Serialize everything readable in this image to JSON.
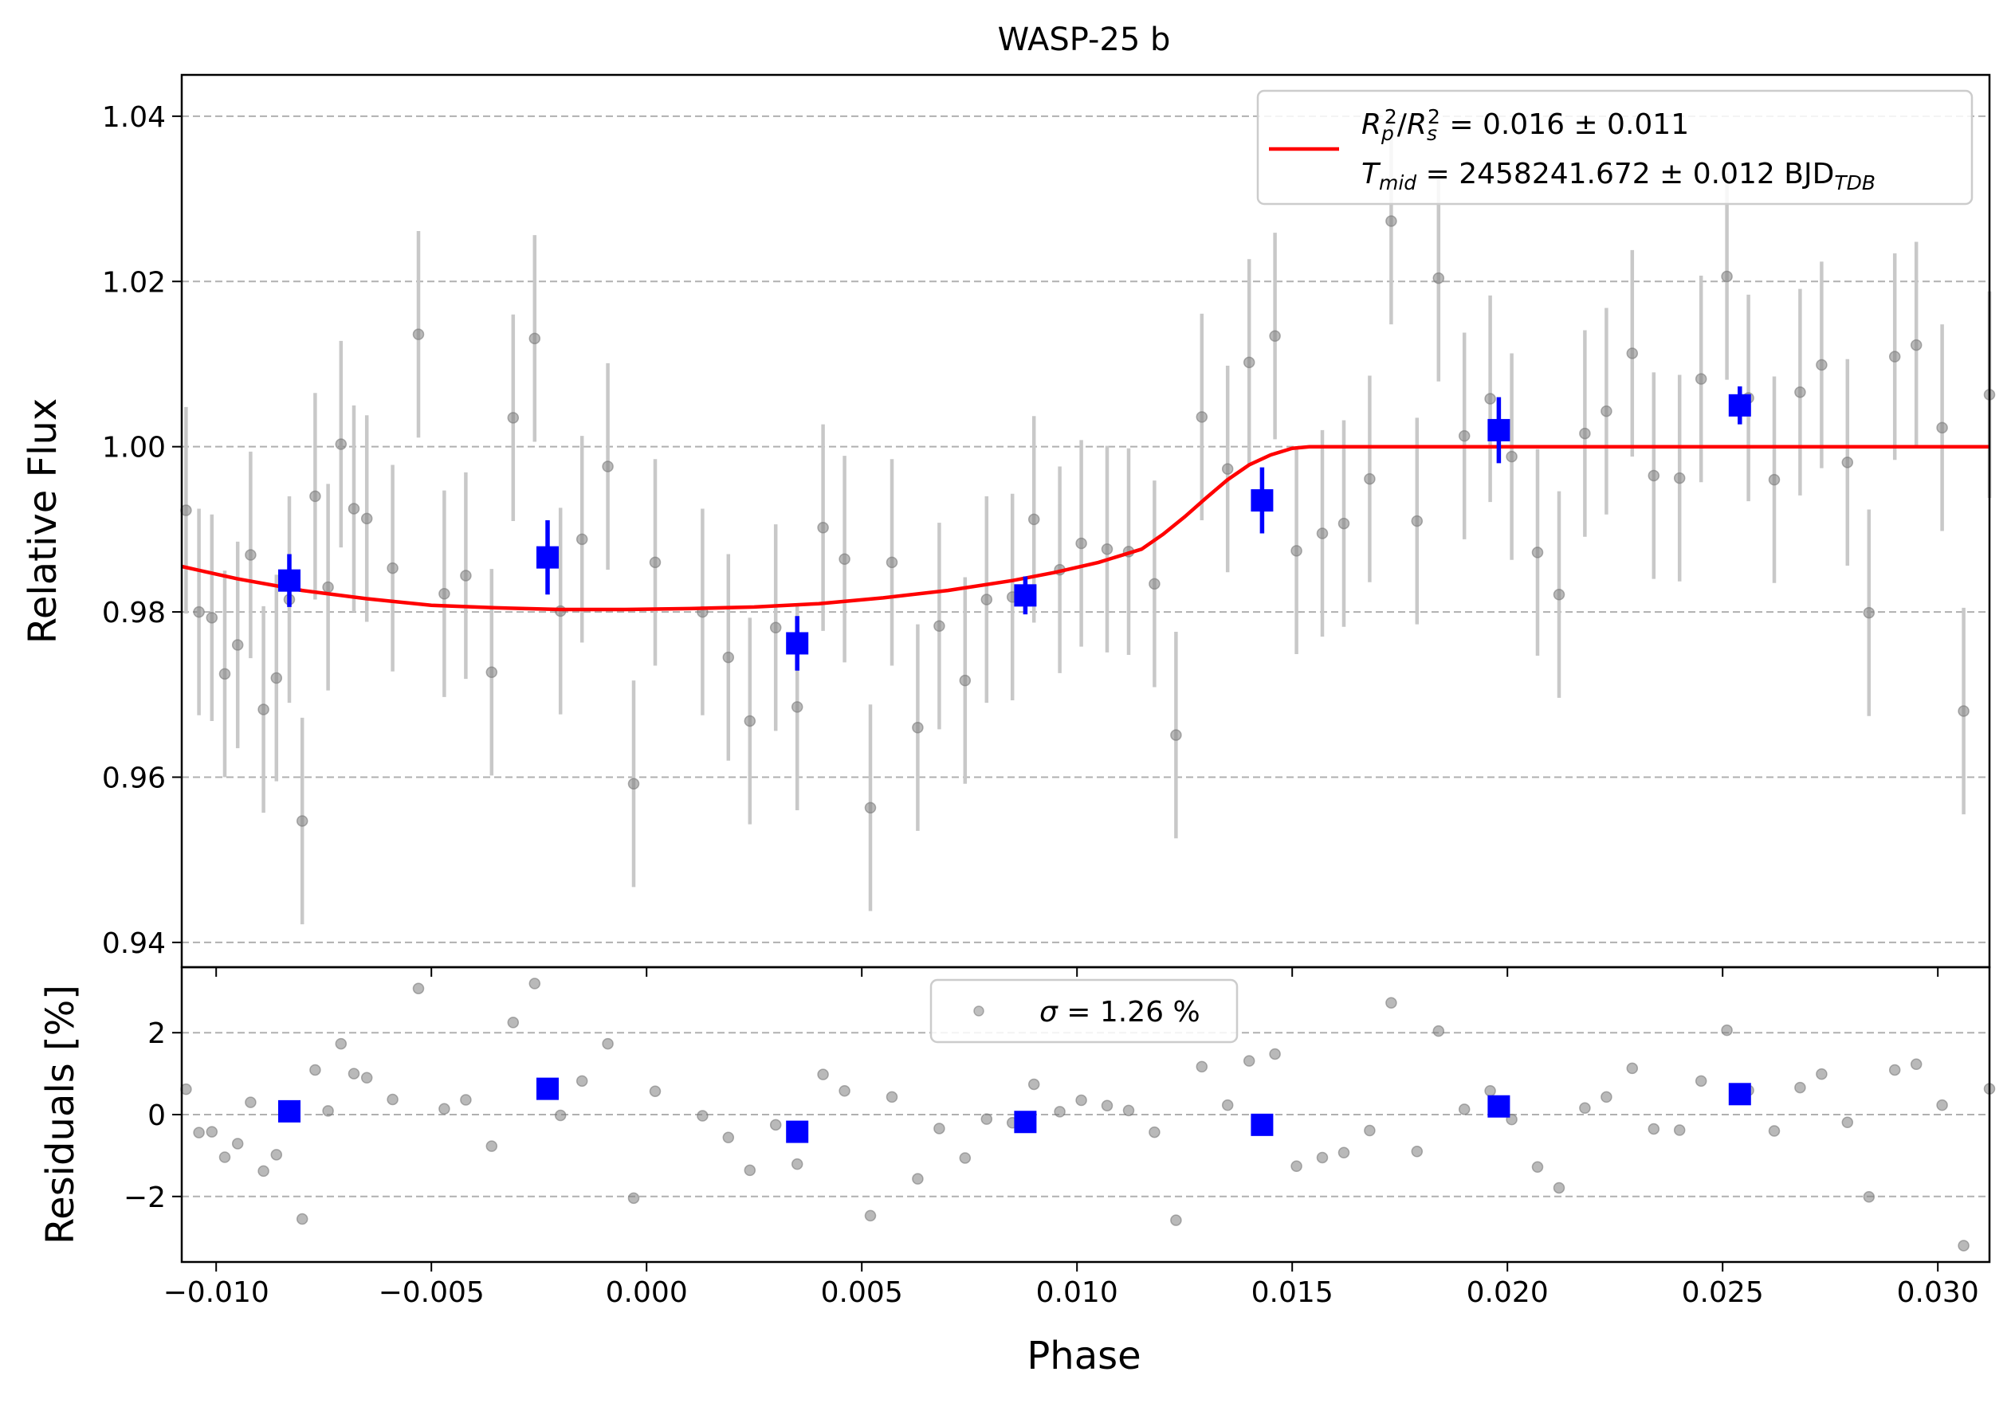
{
  "chart_data": {
    "type": "scatter",
    "title": "WASP-25 b",
    "xlabel": "Phase",
    "xlim": [
      -0.0108,
      0.0312
    ],
    "xticks": [
      {
        "v": -0.01,
        "label": "−0.010"
      },
      {
        "v": -0.005,
        "label": "−0.005"
      },
      {
        "v": 0.0,
        "label": "0.000"
      },
      {
        "v": 0.005,
        "label": "0.005"
      },
      {
        "v": 0.01,
        "label": "0.010"
      },
      {
        "v": 0.015,
        "label": "0.015"
      },
      {
        "v": 0.02,
        "label": "0.020"
      },
      {
        "v": 0.025,
        "label": "0.025"
      },
      {
        "v": 0.03,
        "label": "0.030"
      }
    ],
    "grid": true,
    "top_panel": {
      "ylabel": "Relative Flux",
      "ylim": [
        0.937,
        1.045
      ],
      "yticks": [
        {
          "v": 0.94,
          "label": "0.94"
        },
        {
          "v": 0.96,
          "label": "0.96"
        },
        {
          "v": 0.98,
          "label": "0.98"
        },
        {
          "v": 1.0,
          "label": "1.00"
        },
        {
          "v": 1.02,
          "label": "1.02"
        },
        {
          "v": 1.04,
          "label": "1.04"
        }
      ],
      "legend": {
        "placement": "top-right",
        "line1": {
          "a": "R",
          "a_sub": "p",
          "a_sup": "2",
          "b": "R",
          "b_sub": "s",
          "b_sup": "2",
          "rest": " = 0.016 ± 0.011"
        },
        "line2": {
          "var": "T",
          "var_sub": "mid",
          "rest": " = 2458241.672 ± 0.012 BJD",
          "unit_sub": "TDB"
        }
      },
      "raw_points": {
        "color": "#808080",
        "x": [
          -0.0107,
          -0.0104,
          -0.0101,
          -0.0098,
          -0.0095,
          -0.0092,
          -0.0089,
          -0.0086,
          -0.0083,
          -0.008,
          -0.0077,
          -0.0074,
          -0.0071,
          -0.0068,
          -0.0065,
          -0.0059,
          -0.0053,
          -0.0047,
          -0.0042,
          -0.0036,
          -0.0031,
          -0.0026,
          -0.002,
          -0.0015,
          -0.0009,
          -0.0003,
          0.0002,
          0.0013,
          0.0019,
          0.0024,
          0.003,
          0.0035,
          0.0041,
          0.0046,
          0.0052,
          0.0057,
          0.0063,
          0.0068,
          0.0074,
          0.0079,
          0.0085,
          0.009,
          0.0096,
          0.0101,
          0.0107,
          0.0112,
          0.0118,
          0.0123,
          0.0129,
          0.0135,
          0.014,
          0.0146,
          0.0151,
          0.0157,
          0.0162,
          0.0168,
          0.0173,
          0.0179,
          0.0184,
          0.019,
          0.0196,
          0.0201,
          0.0207,
          0.0212,
          0.0218,
          0.0223,
          0.0229,
          0.0234,
          0.024,
          0.0245,
          0.0251,
          0.0256,
          0.0262,
          0.0268,
          0.0273,
          0.0279,
          0.0284,
          0.029,
          0.0295,
          0.0301,
          0.0306,
          0.0312
        ],
        "y": [
          0.9923,
          0.98,
          0.9793,
          0.9725,
          0.976,
          0.9869,
          0.9682,
          0.972,
          0.9815,
          0.9547,
          0.994,
          0.983,
          1.0003,
          0.9925,
          0.9913,
          0.9853,
          1.0136,
          0.9822,
          0.9844,
          0.9727,
          1.0035,
          1.0131,
          0.9801,
          0.9888,
          0.9976,
          0.9592,
          0.986,
          0.98,
          0.9745,
          0.9668,
          0.9781,
          0.9685,
          0.9902,
          0.9864,
          0.9563,
          0.986,
          0.966,
          0.9783,
          0.9717,
          0.9815,
          0.9818,
          0.9912,
          0.9851,
          0.9883,
          0.9876,
          0.9873,
          0.9834,
          0.9651,
          1.0036,
          0.9973,
          1.0102,
          1.0134,
          0.9874,
          0.9895,
          0.9907,
          0.9961,
          1.0273,
          0.991,
          1.0204,
          1.0013,
          1.0058,
          0.9988,
          0.9872,
          0.9821,
          1.0016,
          1.0043,
          1.0113,
          0.9965,
          0.9962,
          1.0082,
          1.0206,
          1.0059,
          0.996,
          1.0066,
          1.0099,
          0.9981,
          0.9799,
          1.0109,
          1.0123,
          1.0023,
          0.968,
          1.0063
        ],
        "err": 0.0125
      },
      "binned_points": {
        "color": "#0000ff",
        "x": [
          -0.0083,
          -0.0023,
          0.0035,
          0.0088,
          0.0143,
          0.0198,
          0.0254
        ],
        "y": [
          0.9838,
          0.9866,
          0.9762,
          0.982,
          0.9935,
          1.002,
          1.005
        ],
        "err": [
          0.0032,
          0.0045,
          0.0033,
          0.0023,
          0.004,
          0.004,
          0.0023
        ]
      },
      "model": {
        "color": "#ff0000",
        "x": [
          -0.0108,
          -0.0095,
          -0.008,
          -0.0065,
          -0.005,
          -0.0035,
          -0.002,
          -0.0005,
          0.001,
          0.0025,
          0.004,
          0.0055,
          0.007,
          0.0085,
          0.0095,
          0.0105,
          0.0115,
          0.012,
          0.0125,
          0.013,
          0.0135,
          0.014,
          0.0145,
          0.015,
          0.0154,
          0.016,
          0.02,
          0.025,
          0.0312
        ],
        "y": [
          0.9855,
          0.984,
          0.9826,
          0.9816,
          0.9808,
          0.9805,
          0.9803,
          0.9803,
          0.9804,
          0.9806,
          0.981,
          0.9817,
          0.9826,
          0.9838,
          0.9848,
          0.986,
          0.9876,
          0.9894,
          0.9915,
          0.9938,
          0.996,
          0.9978,
          0.999,
          0.9998,
          1.0,
          1.0,
          1.0,
          1.0,
          1.0
        ]
      }
    },
    "bottom_panel": {
      "ylabel": "Residuals [%]",
      "ylim": [
        -3.6,
        3.6
      ],
      "yticks": [
        {
          "v": -2,
          "label": "−2"
        },
        {
          "v": 0,
          "label": "0"
        },
        {
          "v": 2,
          "label": "2"
        }
      ],
      "legend": {
        "placement": "top-center",
        "var": "σ",
        "rest": " = 1.26 %"
      },
      "raw_residuals": [
        0.62,
        -0.44,
        -0.42,
        -1.04,
        -0.71,
        0.3,
        -1.38,
        -0.98,
        0.12,
        -2.55,
        1.09,
        0.09,
        1.73,
        1.0,
        0.9,
        0.37,
        3.08,
        0.14,
        0.36,
        -0.77,
        2.25,
        3.2,
        -0.02,
        0.82,
        1.73,
        -2.04,
        0.57,
        -0.03,
        -0.56,
        -1.36,
        -0.25,
        -1.21,
        0.98,
        0.58,
        -2.47,
        0.43,
        -1.57,
        -0.34,
        -1.06,
        -0.11,
        -0.2,
        0.74,
        0.07,
        0.35,
        0.22,
        0.1,
        -0.43,
        -2.58,
        1.17,
        0.23,
        1.31,
        1.48,
        -1.26,
        -1.05,
        -0.93,
        -0.39,
        2.73,
        -0.9,
        2.04,
        0.13,
        0.58,
        -0.12,
        -1.28,
        -1.79,
        0.16,
        0.43,
        1.13,
        -0.35,
        -0.38,
        0.82,
        2.06,
        0.59,
        -0.4,
        0.66,
        0.99,
        -0.19,
        -2.01,
        1.09,
        1.23,
        0.23,
        -3.2,
        0.63
      ],
      "binned_residuals": [
        0.08,
        0.63,
        -0.42,
        -0.18,
        -0.25,
        0.2,
        0.5
      ]
    }
  }
}
